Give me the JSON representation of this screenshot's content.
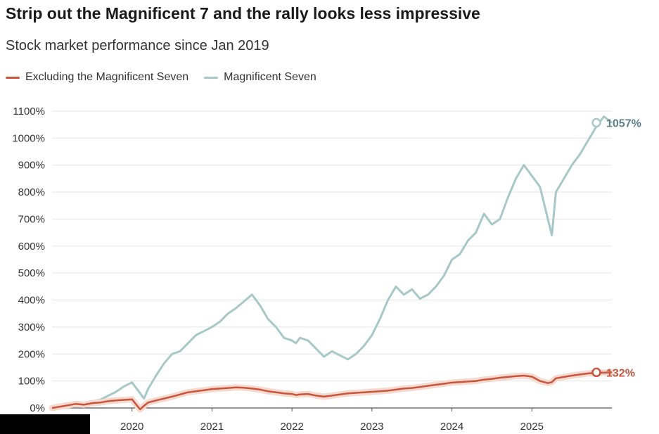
{
  "title": "Strip out the Magnificent 7 and the rally looks less impressive",
  "subtitle": "Stock market performance since Jan 2019",
  "colors": {
    "excluding": "#c8553d",
    "excluding_band": "#f6d9cf",
    "mag7": "#a8c8c8",
    "mag7_label": "#5f7f85",
    "grid": "#e5e5e5",
    "axis": "#555555"
  },
  "legend": [
    {
      "label": "Excluding the Magnificent Seven",
      "color": "#c8553d"
    },
    {
      "label": "Magnificent Seven",
      "color": "#a8c8c8"
    }
  ],
  "chart_data": {
    "type": "line",
    "title": "Strip out the Magnificent 7 and the rally looks less impressive",
    "subtitle": "Stock market performance since Jan 2019",
    "x_ticks": [
      "2020",
      "2021",
      "2022",
      "2023",
      "2024",
      "2025"
    ],
    "y_ticks": [
      "0%",
      "100%",
      "200%",
      "300%",
      "400%",
      "500%",
      "600%",
      "700%",
      "800%",
      "900%",
      "1000%",
      "1100%"
    ],
    "ylim": [
      0,
      1100
    ],
    "xlim": [
      2019.0,
      2026.0
    ],
    "grid": true,
    "legend_position": "top-left",
    "series": [
      {
        "name": "Magnificent Seven",
        "end_label": "1057%",
        "x": [
          2019.0,
          2019.1,
          2019.2,
          2019.3,
          2019.4,
          2019.5,
          2019.6,
          2019.7,
          2019.8,
          2019.9,
          2020.0,
          2020.1,
          2020.15,
          2020.2,
          2020.3,
          2020.4,
          2020.5,
          2020.6,
          2020.7,
          2020.8,
          2020.9,
          2021.0,
          2021.1,
          2021.2,
          2021.3,
          2021.4,
          2021.5,
          2021.6,
          2021.7,
          2021.8,
          2021.9,
          2022.0,
          2022.05,
          2022.1,
          2022.2,
          2022.3,
          2022.4,
          2022.5,
          2022.6,
          2022.7,
          2022.8,
          2022.9,
          2023.0,
          2023.1,
          2023.2,
          2023.3,
          2023.4,
          2023.5,
          2023.6,
          2023.7,
          2023.8,
          2023.9,
          2024.0,
          2024.1,
          2024.2,
          2024.3,
          2024.4,
          2024.5,
          2024.6,
          2024.7,
          2024.8,
          2024.9,
          2025.0,
          2025.1,
          2025.2,
          2025.25,
          2025.3,
          2025.4,
          2025.5,
          2025.6,
          2025.7,
          2025.8,
          2025.9,
          2026.0
        ],
        "values": [
          0,
          5,
          15,
          20,
          10,
          25,
          30,
          45,
          60,
          80,
          95,
          55,
          35,
          70,
          120,
          165,
          200,
          210,
          240,
          270,
          285,
          300,
          320,
          350,
          370,
          395,
          420,
          380,
          330,
          300,
          260,
          250,
          240,
          260,
          250,
          220,
          190,
          210,
          195,
          180,
          200,
          230,
          270,
          330,
          400,
          450,
          420,
          440,
          405,
          420,
          450,
          490,
          550,
          570,
          620,
          650,
          720,
          680,
          700,
          780,
          850,
          900,
          860,
          820,
          700,
          640,
          800,
          850,
          900,
          940,
          990,
          1040,
          1080,
          1057
        ]
      },
      {
        "name": "Excluding the Magnificent Seven",
        "end_label": "132%",
        "x": [
          2019.0,
          2019.1,
          2019.2,
          2019.3,
          2019.4,
          2019.5,
          2019.6,
          2019.7,
          2019.8,
          2019.9,
          2020.0,
          2020.1,
          2020.15,
          2020.2,
          2020.3,
          2020.4,
          2020.5,
          2020.6,
          2020.7,
          2020.8,
          2020.9,
          2021.0,
          2021.1,
          2021.2,
          2021.3,
          2021.4,
          2021.5,
          2021.6,
          2021.7,
          2021.8,
          2021.9,
          2022.0,
          2022.05,
          2022.1,
          2022.2,
          2022.3,
          2022.4,
          2022.5,
          2022.6,
          2022.7,
          2022.8,
          2022.9,
          2023.0,
          2023.1,
          2023.2,
          2023.3,
          2023.4,
          2023.5,
          2023.6,
          2023.7,
          2023.8,
          2023.9,
          2024.0,
          2024.1,
          2024.2,
          2024.3,
          2024.4,
          2024.5,
          2024.6,
          2024.7,
          2024.8,
          2024.9,
          2025.0,
          2025.1,
          2025.2,
          2025.25,
          2025.3,
          2025.4,
          2025.5,
          2025.6,
          2025.7,
          2025.8,
          2025.9,
          2026.0
        ],
        "values": [
          0,
          5,
          10,
          15,
          12,
          18,
          20,
          25,
          28,
          30,
          32,
          -5,
          8,
          20,
          28,
          35,
          42,
          50,
          58,
          62,
          66,
          70,
          72,
          74,
          76,
          75,
          72,
          68,
          62,
          58,
          54,
          52,
          48,
          50,
          52,
          46,
          42,
          46,
          50,
          54,
          56,
          58,
          60,
          62,
          64,
          68,
          72,
          74,
          78,
          82,
          86,
          90,
          94,
          96,
          98,
          100,
          105,
          108,
          112,
          115,
          118,
          120,
          116,
          100,
          92,
          96,
          110,
          115,
          120,
          124,
          128,
          130,
          131,
          132
        ]
      }
    ]
  }
}
